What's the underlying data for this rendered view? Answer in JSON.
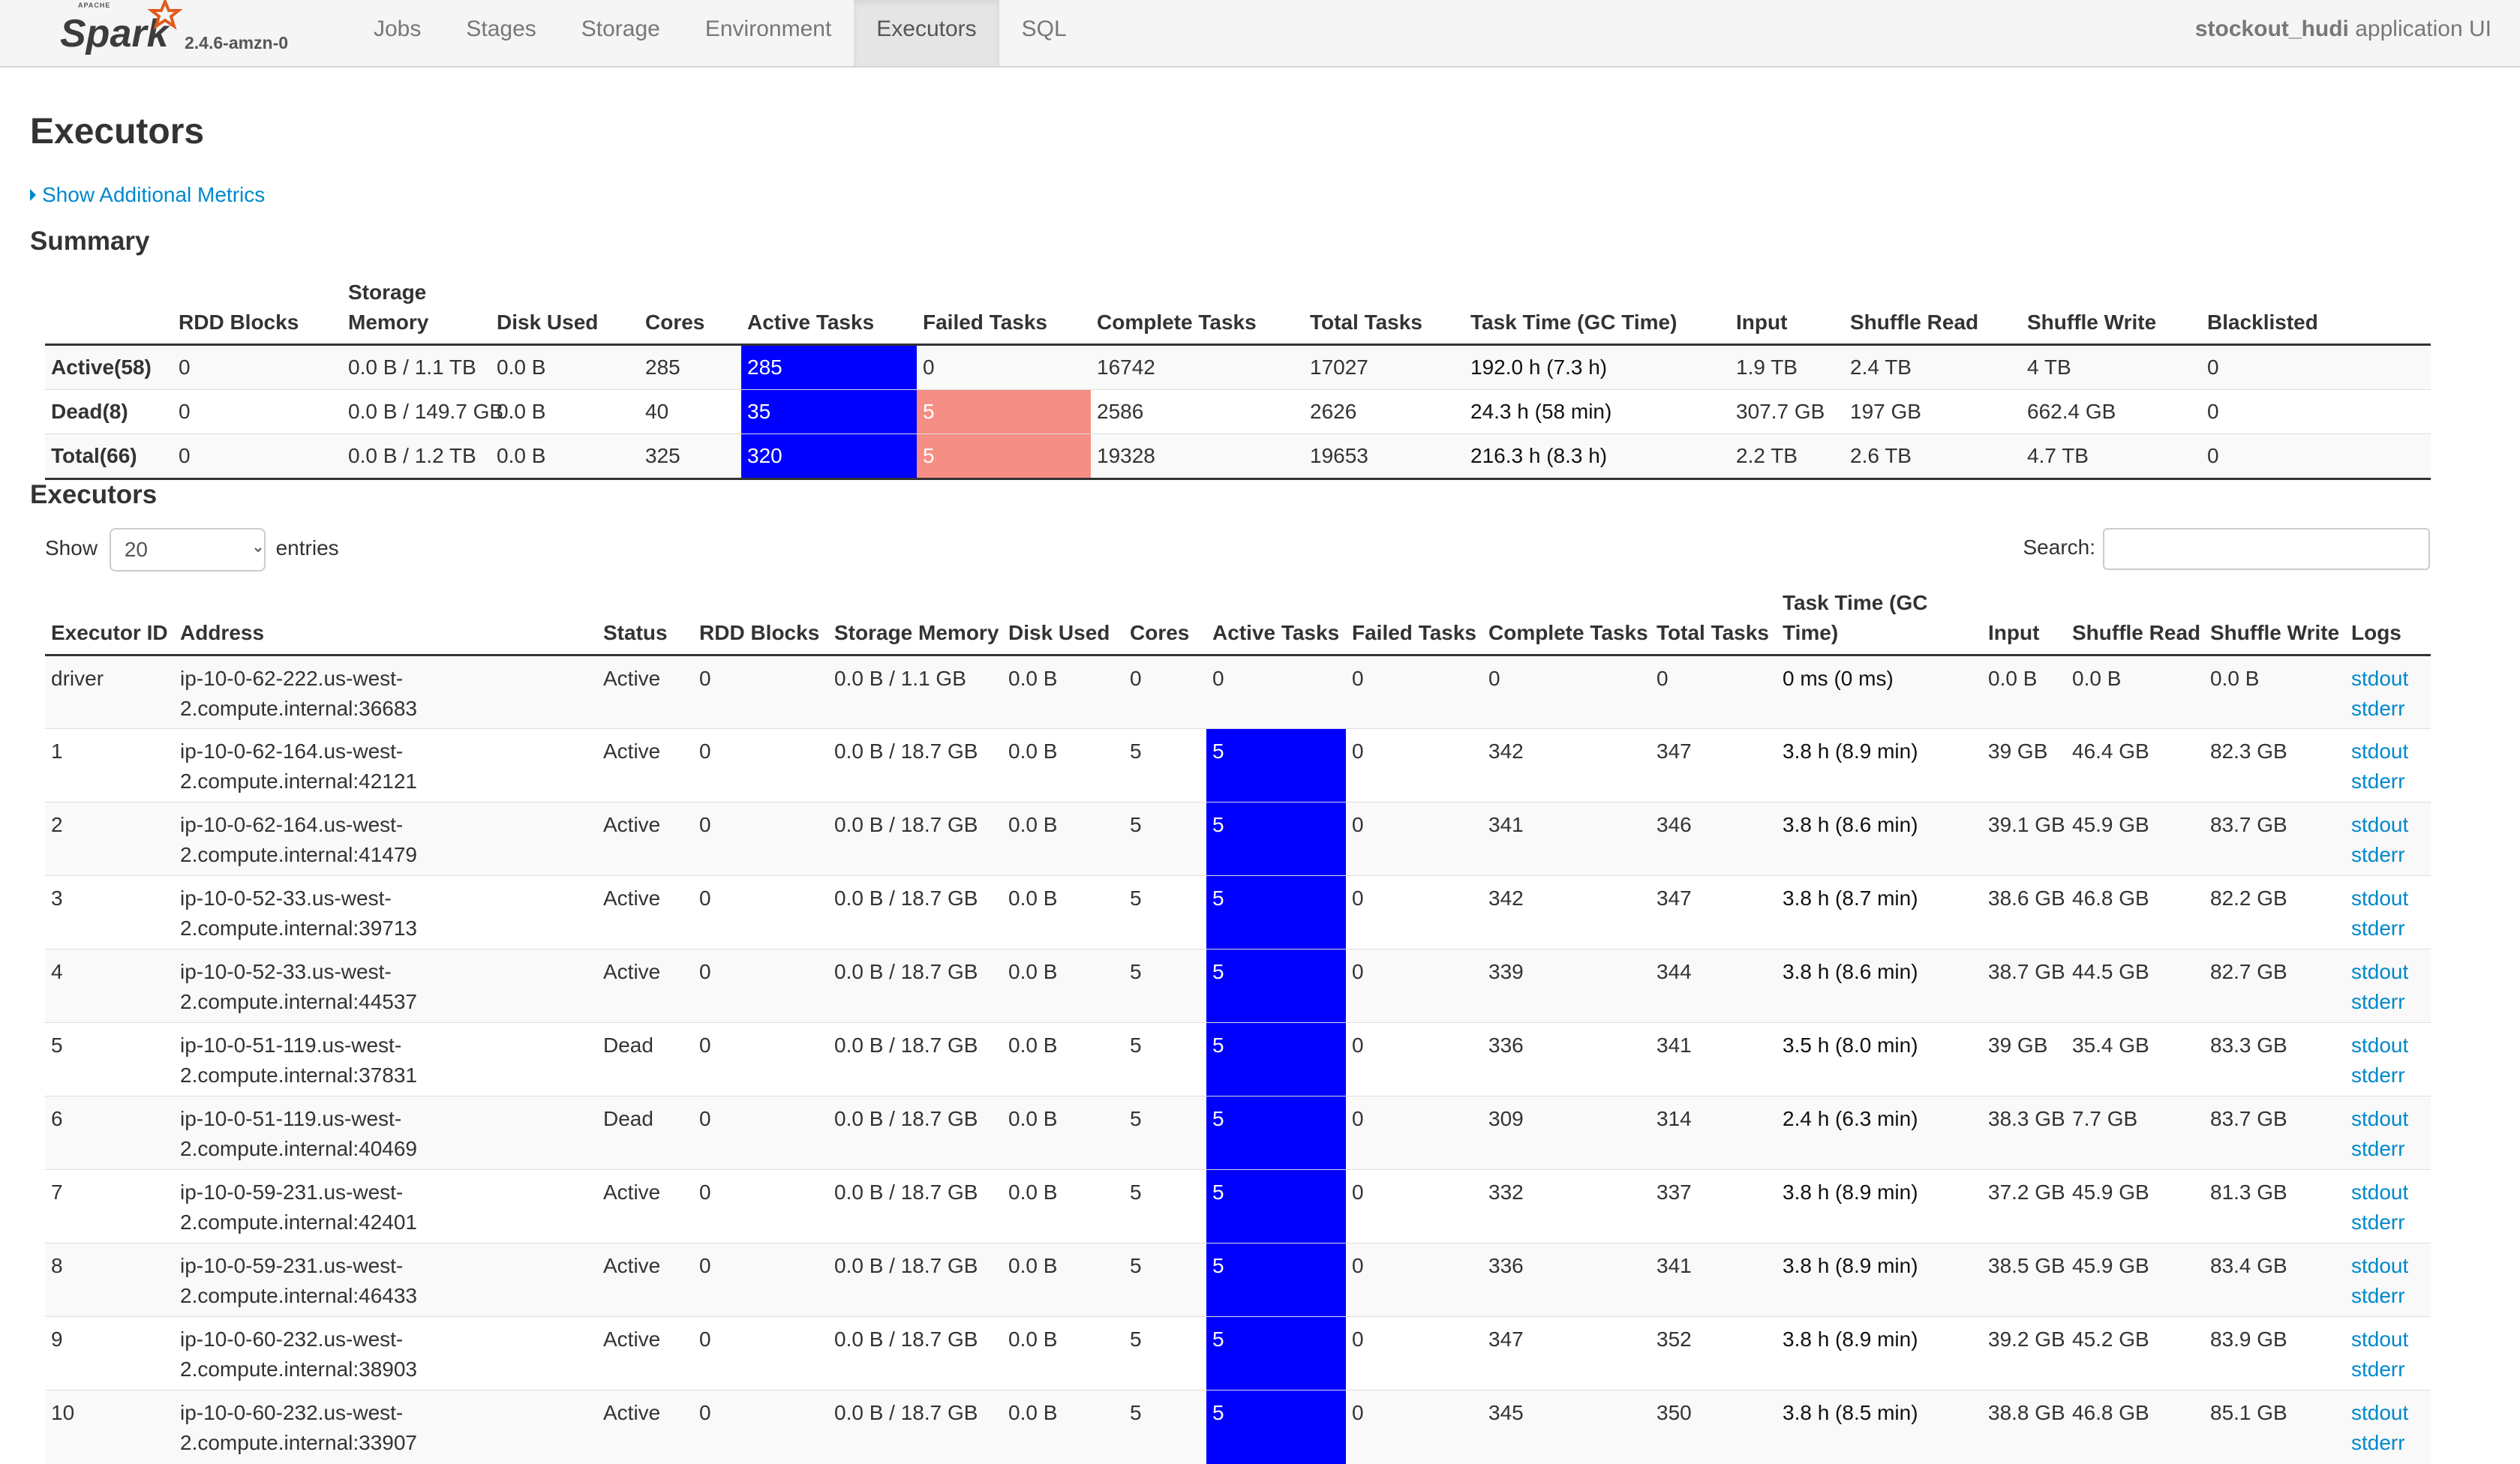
{
  "nav": {
    "brand_version": "2.4.6-amzn-0",
    "tabs": [
      "Jobs",
      "Stages",
      "Storage",
      "Environment",
      "Executors",
      "SQL"
    ],
    "active_tab": "Executors",
    "app_name": "stockout_hudi",
    "app_suffix": " application UI"
  },
  "page": {
    "title": "Executors",
    "metrics_link": "Show Additional Metrics",
    "summary_heading": "Summary",
    "executors_heading": "Executors"
  },
  "summary": {
    "headers": [
      "",
      "RDD Blocks",
      "Storage Memory",
      "Disk Used",
      "Cores",
      "Active Tasks",
      "Failed Tasks",
      "Complete Tasks",
      "Total Tasks",
      "Task Time (GC Time)",
      "Input",
      "Shuffle Read",
      "Shuffle Write",
      "Blacklisted"
    ],
    "rows": [
      [
        "Active(58)",
        "0",
        "0.0 B / 1.1 TB",
        "0.0 B",
        "285",
        "285",
        "0",
        "16742",
        "17027",
        "192.0 h (7.3 h)",
        "1.9 TB",
        "2.4 TB",
        "4 TB",
        "0"
      ],
      [
        "Dead(8)",
        "0",
        "0.0 B / 149.7 GB",
        "0.0 B",
        "40",
        "35",
        "5",
        "2586",
        "2626",
        "24.3 h (58 min)",
        "307.7 GB",
        "197 GB",
        "662.4 GB",
        "0"
      ],
      [
        "Total(66)",
        "0",
        "0.0 B / 1.2 TB",
        "0.0 B",
        "325",
        "320",
        "5",
        "19328",
        "19653",
        "216.3 h (8.3 h)",
        "2.2 TB",
        "2.6 TB",
        "4.7 TB",
        "0"
      ]
    ]
  },
  "controls": {
    "show_label": "Show",
    "entries_value": "20",
    "entries_label": "entries",
    "search_label": "Search:"
  },
  "executors": {
    "headers": [
      "Executor ID",
      "Address",
      "Status",
      "RDD Blocks",
      "Storage Memory",
      "Disk Used",
      "Cores",
      "Active Tasks",
      "Failed Tasks",
      "Complete Tasks",
      "Total Tasks",
      "Task Time (GC Time)",
      "Input",
      "Shuffle Read",
      "Shuffle Write",
      "Logs"
    ],
    "stdout_label": "stdout",
    "stderr_label": "stderr",
    "rows": [
      [
        "driver",
        "ip-10-0-62-222.us-west-2.compute.internal:36683",
        "Active",
        "0",
        "0.0 B / 1.1 GB",
        "0.0 B",
        "0",
        "0",
        "0",
        "0",
        "0",
        "0 ms (0 ms)",
        "0.0 B",
        "0.0 B",
        "0.0 B"
      ],
      [
        "1",
        "ip-10-0-62-164.us-west-2.compute.internal:42121",
        "Active",
        "0",
        "0.0 B / 18.7 GB",
        "0.0 B",
        "5",
        "5",
        "0",
        "342",
        "347",
        "3.8 h (8.9 min)",
        "39 GB",
        "46.4 GB",
        "82.3 GB"
      ],
      [
        "2",
        "ip-10-0-62-164.us-west-2.compute.internal:41479",
        "Active",
        "0",
        "0.0 B / 18.7 GB",
        "0.0 B",
        "5",
        "5",
        "0",
        "341",
        "346",
        "3.8 h (8.6 min)",
        "39.1 GB",
        "45.9 GB",
        "83.7 GB"
      ],
      [
        "3",
        "ip-10-0-52-33.us-west-2.compute.internal:39713",
        "Active",
        "0",
        "0.0 B / 18.7 GB",
        "0.0 B",
        "5",
        "5",
        "0",
        "342",
        "347",
        "3.8 h (8.7 min)",
        "38.6 GB",
        "46.8 GB",
        "82.2 GB"
      ],
      [
        "4",
        "ip-10-0-52-33.us-west-2.compute.internal:44537",
        "Active",
        "0",
        "0.0 B / 18.7 GB",
        "0.0 B",
        "5",
        "5",
        "0",
        "339",
        "344",
        "3.8 h (8.6 min)",
        "38.7 GB",
        "44.5 GB",
        "82.7 GB"
      ],
      [
        "5",
        "ip-10-0-51-119.us-west-2.compute.internal:37831",
        "Dead",
        "0",
        "0.0 B / 18.7 GB",
        "0.0 B",
        "5",
        "5",
        "0",
        "336",
        "341",
        "3.5 h (8.0 min)",
        "39 GB",
        "35.4 GB",
        "83.3 GB"
      ],
      [
        "6",
        "ip-10-0-51-119.us-west-2.compute.internal:40469",
        "Dead",
        "0",
        "0.0 B / 18.7 GB",
        "0.0 B",
        "5",
        "5",
        "0",
        "309",
        "314",
        "2.4 h (6.3 min)",
        "38.3 GB",
        "7.7 GB",
        "83.7 GB"
      ],
      [
        "7",
        "ip-10-0-59-231.us-west-2.compute.internal:42401",
        "Active",
        "0",
        "0.0 B / 18.7 GB",
        "0.0 B",
        "5",
        "5",
        "0",
        "332",
        "337",
        "3.8 h (8.9 min)",
        "37.2 GB",
        "45.9 GB",
        "81.3 GB"
      ],
      [
        "8",
        "ip-10-0-59-231.us-west-2.compute.internal:46433",
        "Active",
        "0",
        "0.0 B / 18.7 GB",
        "0.0 B",
        "5",
        "5",
        "0",
        "336",
        "341",
        "3.8 h (8.9 min)",
        "38.5 GB",
        "45.9 GB",
        "83.4 GB"
      ],
      [
        "9",
        "ip-10-0-60-232.us-west-2.compute.internal:38903",
        "Active",
        "0",
        "0.0 B / 18.7 GB",
        "0.0 B",
        "5",
        "5",
        "0",
        "347",
        "352",
        "3.8 h (8.9 min)",
        "39.2 GB",
        "45.2 GB",
        "83.9 GB"
      ],
      [
        "10",
        "ip-10-0-60-232.us-west-2.compute.internal:33907",
        "Active",
        "0",
        "0.0 B / 18.7 GB",
        "0.0 B",
        "5",
        "5",
        "0",
        "345",
        "350",
        "3.8 h (8.5 min)",
        "38.8 GB",
        "46.8 GB",
        "85.1 GB"
      ]
    ]
  },
  "colors": {
    "active_task_cell": "#0000ff",
    "failed_task_cell": "#f58e84",
    "link": "#0088cc"
  }
}
